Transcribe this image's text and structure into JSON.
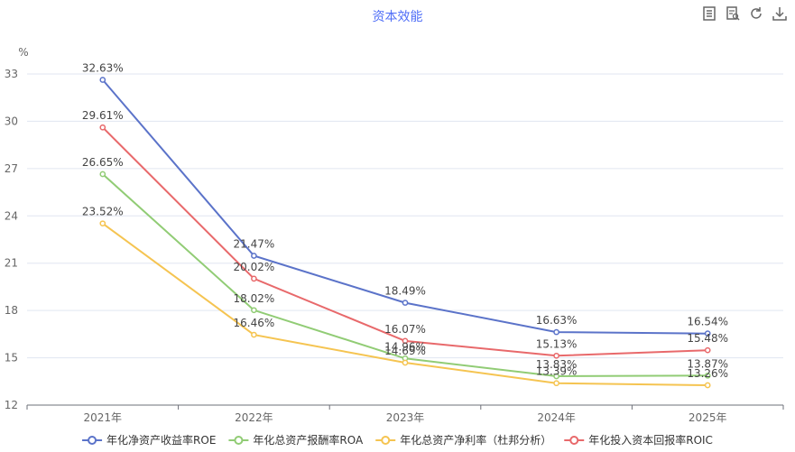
{
  "title": "资本效能",
  "toolbox": [
    {
      "name": "data-view-icon",
      "label": "数据视图"
    },
    {
      "name": "restore-view-icon",
      "label": "区域缩放"
    },
    {
      "name": "refresh-icon",
      "label": "还原"
    },
    {
      "name": "download-icon",
      "label": "保存为图片"
    }
  ],
  "chart_data": {
    "type": "line",
    "title": "资本效能",
    "ylabel": "%",
    "categories": [
      "2021年",
      "2022年",
      "2023年",
      "2024年",
      "2025年"
    ],
    "ylim": [
      12,
      33
    ],
    "yticks": [
      12,
      15,
      18,
      21,
      24,
      27,
      30,
      33
    ],
    "grid": "horizontal",
    "legend_position": "bottom",
    "series": [
      {
        "name": "年化净资产收益率ROE",
        "color": "#5b73c9",
        "values": [
          32.63,
          21.47,
          18.49,
          16.63,
          16.54
        ],
        "labels": [
          "32.63%",
          "21.47%",
          "18.49%",
          "16.63%",
          "16.54%"
        ]
      },
      {
        "name": "年化总资产报酬率ROA",
        "color": "#91cc75",
        "values": [
          26.65,
          18.02,
          14.96,
          13.83,
          13.87
        ],
        "labels": [
          "26.65%",
          "18.02%",
          "14.96%",
          "13.83%",
          "13.87%"
        ]
      },
      {
        "name": "年化总资产净利率（杜邦分析）",
        "color": "#f5c451",
        "values": [
          23.52,
          16.46,
          14.69,
          13.39,
          13.26
        ],
        "labels": [
          "23.52%",
          "16.46%",
          "14.69%",
          "13.39%",
          "13.26%"
        ]
      },
      {
        "name": "年化投入资本回报率ROIC",
        "color": "#e8696b",
        "values": [
          29.61,
          20.02,
          16.07,
          15.13,
          15.48
        ],
        "labels": [
          "29.61%",
          "20.02%",
          "16.07%",
          "15.13%",
          "15.48%"
        ]
      }
    ]
  }
}
